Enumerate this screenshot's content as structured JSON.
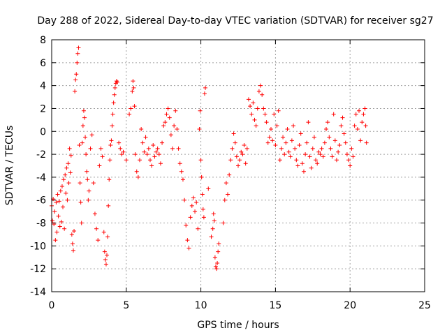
{
  "chart_data": {
    "type": "scatter",
    "title": "Day 288 of 2022, Sidereal Day-to-day VTEC variation (SDTVAR) for receiver sg27",
    "xlabel": "GPS time / hours",
    "ylabel": "SDTVAR / TECUs",
    "xlim": [
      0,
      25
    ],
    "ylim": [
      -14,
      8
    ],
    "xticks": [
      0,
      5,
      10,
      15,
      20,
      25
    ],
    "yticks": [
      -14,
      -12,
      -10,
      -8,
      -6,
      -4,
      -2,
      0,
      2,
      4,
      6,
      8
    ],
    "grid": true,
    "marker": "plus",
    "color": "#ff0000",
    "series": [
      {
        "name": "sg27",
        "points": [
          [
            0.0,
            -6.5
          ],
          [
            0.05,
            -7.8
          ],
          [
            0.1,
            -5.9
          ],
          [
            0.15,
            -8.1
          ],
          [
            0.2,
            -7.0
          ],
          [
            0.25,
            -9.5
          ],
          [
            0.3,
            -6.2
          ],
          [
            0.35,
            -8.8
          ],
          [
            0.4,
            -5.5
          ],
          [
            0.45,
            -7.4
          ],
          [
            0.5,
            -6.1
          ],
          [
            0.55,
            -8.3
          ],
          [
            0.6,
            -5.2
          ],
          [
            0.65,
            -7.9
          ],
          [
            0.7,
            -4.8
          ],
          [
            0.75,
            -6.6
          ],
          [
            0.8,
            -4.2
          ],
          [
            0.85,
            -8.5
          ],
          [
            0.9,
            -3.8
          ],
          [
            0.95,
            -5.4
          ],
          [
            1.0,
            -3.2
          ],
          [
            1.05,
            -6.0
          ],
          [
            1.1,
            -2.8
          ],
          [
            1.15,
            -4.5
          ],
          [
            1.2,
            -1.5
          ],
          [
            1.25,
            -3.6
          ],
          [
            1.3,
            -2.1
          ],
          [
            1.35,
            -9.0
          ],
          [
            1.4,
            -9.8
          ],
          [
            1.45,
            -10.4
          ],
          [
            1.5,
            -8.7
          ],
          [
            1.55,
            3.5
          ],
          [
            1.6,
            4.5
          ],
          [
            1.65,
            5.0
          ],
          [
            1.7,
            6.0
          ],
          [
            1.75,
            6.8
          ],
          [
            1.8,
            7.3
          ],
          [
            1.85,
            -1.2
          ],
          [
            1.9,
            -4.5
          ],
          [
            1.95,
            -6.2
          ],
          [
            2.0,
            -8.0
          ],
          [
            2.05,
            -1.0
          ],
          [
            2.1,
            0.5
          ],
          [
            2.15,
            1.8
          ],
          [
            2.2,
            1.2
          ],
          [
            2.25,
            -0.5
          ],
          [
            2.3,
            -2.0
          ],
          [
            2.35,
            -3.5
          ],
          [
            2.4,
            -4.2
          ],
          [
            2.45,
            -6.0
          ],
          [
            2.5,
            -5.2
          ],
          [
            2.6,
            -1.5
          ],
          [
            2.7,
            -0.3
          ],
          [
            2.8,
            -4.5
          ],
          [
            2.9,
            -7.2
          ],
          [
            3.0,
            -8.5
          ],
          [
            3.1,
            -9.5
          ],
          [
            3.2,
            -3.0
          ],
          [
            3.3,
            -1.5
          ],
          [
            3.4,
            -2.2
          ],
          [
            3.5,
            -8.8
          ],
          [
            3.55,
            -10.5
          ],
          [
            3.6,
            -11.2
          ],
          [
            3.65,
            -11.6
          ],
          [
            3.7,
            -10.8
          ],
          [
            3.75,
            -9.2
          ],
          [
            3.8,
            -6.5
          ],
          [
            3.85,
            -4.2
          ],
          [
            3.9,
            -2.5
          ],
          [
            3.95,
            -1.2
          ],
          [
            4.0,
            -0.8
          ],
          [
            4.05,
            0.5
          ],
          [
            4.1,
            1.5
          ],
          [
            4.15,
            2.5
          ],
          [
            4.2,
            3.2
          ],
          [
            4.25,
            3.8
          ],
          [
            4.3,
            4.2
          ],
          [
            4.35,
            4.4
          ],
          [
            4.4,
            4.3
          ],
          [
            4.5,
            -1.0
          ],
          [
            4.6,
            -1.5
          ],
          [
            4.7,
            -2.0
          ],
          [
            4.8,
            -1.8
          ],
          [
            5.0,
            -2.5
          ],
          [
            5.2,
            1.5
          ],
          [
            5.3,
            2.0
          ],
          [
            5.4,
            3.5
          ],
          [
            5.45,
            4.4
          ],
          [
            5.5,
            3.8
          ],
          [
            5.55,
            2.2
          ],
          [
            5.6,
            -2.0
          ],
          [
            5.7,
            -3.5
          ],
          [
            5.8,
            -4.0
          ],
          [
            5.9,
            -2.5
          ],
          [
            6.0,
            0.2
          ],
          [
            6.1,
            -1.0
          ],
          [
            6.2,
            -1.8
          ],
          [
            6.3,
            -0.5
          ],
          [
            6.4,
            -2.0
          ],
          [
            6.5,
            -1.5
          ],
          [
            6.6,
            -2.5
          ],
          [
            6.7,
            -3.0
          ],
          [
            6.8,
            -1.2
          ],
          [
            6.9,
            -2.2
          ],
          [
            7.0,
            -1.8
          ],
          [
            7.1,
            -1.5
          ],
          [
            7.2,
            -2.0
          ],
          [
            7.3,
            -2.8
          ],
          [
            7.4,
            -1.0
          ],
          [
            7.5,
            0.5
          ],
          [
            7.6,
            0.8
          ],
          [
            7.7,
            1.5
          ],
          [
            7.8,
            2.0
          ],
          [
            7.9,
            1.2
          ],
          [
            8.0,
            -0.3
          ],
          [
            8.1,
            -1.5
          ],
          [
            8.2,
            0.5
          ],
          [
            8.3,
            1.8
          ],
          [
            8.4,
            0.2
          ],
          [
            8.5,
            -1.5
          ],
          [
            8.6,
            -2.8
          ],
          [
            8.7,
            -3.5
          ],
          [
            8.8,
            -4.2
          ],
          [
            8.9,
            -6.0
          ],
          [
            9.0,
            -8.2
          ],
          [
            9.1,
            -9.5
          ],
          [
            9.2,
            -10.2
          ],
          [
            9.3,
            -7.5
          ],
          [
            9.4,
            -6.5
          ],
          [
            9.5,
            -5.8
          ],
          [
            9.6,
            -7.0
          ],
          [
            9.7,
            -6.2
          ],
          [
            9.8,
            -8.5
          ],
          [
            9.9,
            0.2
          ],
          [
            9.95,
            1.8
          ],
          [
            10.0,
            -2.5
          ],
          [
            10.05,
            -4.0
          ],
          [
            10.1,
            -5.5
          ],
          [
            10.15,
            -6.8
          ],
          [
            10.2,
            -7.5
          ],
          [
            10.25,
            3.3
          ],
          [
            10.3,
            3.8
          ],
          [
            10.5,
            -5.0
          ],
          [
            10.7,
            -9.2
          ],
          [
            10.8,
            -8.5
          ],
          [
            10.85,
            -7.2
          ],
          [
            10.9,
            -7.8
          ],
          [
            10.95,
            -11.0
          ],
          [
            11.0,
            -11.8
          ],
          [
            11.05,
            -12.0
          ],
          [
            11.1,
            -11.5
          ],
          [
            11.15,
            -10.5
          ],
          [
            11.2,
            -9.8
          ],
          [
            11.5,
            -8.0
          ],
          [
            11.6,
            -6.0
          ],
          [
            11.7,
            -4.5
          ],
          [
            11.8,
            -5.5
          ],
          [
            11.9,
            -3.8
          ],
          [
            12.0,
            -2.5
          ],
          [
            12.1,
            -1.5
          ],
          [
            12.2,
            -0.2
          ],
          [
            12.3,
            -1.0
          ],
          [
            12.4,
            -2.2
          ],
          [
            12.5,
            -3.0
          ],
          [
            12.6,
            -2.5
          ],
          [
            12.7,
            -1.8
          ],
          [
            12.8,
            -2.0
          ],
          [
            12.9,
            -1.2
          ],
          [
            13.0,
            -2.8
          ],
          [
            13.1,
            -1.5
          ],
          [
            13.2,
            2.8
          ],
          [
            13.3,
            2.2
          ],
          [
            13.4,
            1.5
          ],
          [
            13.5,
            2.5
          ],
          [
            13.6,
            1.0
          ],
          [
            13.7,
            0.5
          ],
          [
            13.8,
            2.0
          ],
          [
            13.9,
            3.5
          ],
          [
            14.0,
            4.0
          ],
          [
            14.1,
            3.2
          ],
          [
            14.2,
            2.0
          ],
          [
            14.3,
            1.5
          ],
          [
            14.4,
            0.8
          ],
          [
            14.5,
            -1.0
          ],
          [
            14.6,
            -0.5
          ],
          [
            14.7,
            0.2
          ],
          [
            14.8,
            -0.8
          ],
          [
            14.9,
            1.5
          ],
          [
            15.0,
            -1.2
          ],
          [
            15.1,
            0.5
          ],
          [
            15.2,
            1.8
          ],
          [
            15.3,
            -2.5
          ],
          [
            15.4,
            -1.5
          ],
          [
            15.5,
            -0.5
          ],
          [
            15.6,
            -2.0
          ],
          [
            15.7,
            -1.0
          ],
          [
            15.8,
            0.2
          ],
          [
            15.9,
            -1.8
          ],
          [
            16.0,
            -2.2
          ],
          [
            16.1,
            -0.8
          ],
          [
            16.2,
            0.5
          ],
          [
            16.3,
            -1.5
          ],
          [
            16.4,
            -2.5
          ],
          [
            16.5,
            -3.0
          ],
          [
            16.6,
            -1.2
          ],
          [
            16.7,
            -0.2
          ],
          [
            16.8,
            -2.8
          ],
          [
            16.9,
            -3.5
          ],
          [
            17.0,
            -2.0
          ],
          [
            17.1,
            -1.0
          ],
          [
            17.2,
            0.8
          ],
          [
            17.3,
            -2.2
          ],
          [
            17.4,
            -3.2
          ],
          [
            17.5,
            -1.5
          ],
          [
            17.6,
            -0.5
          ],
          [
            17.7,
            -2.5
          ],
          [
            17.8,
            -2.8
          ],
          [
            17.9,
            -1.8
          ],
          [
            18.0,
            -2.0
          ],
          [
            18.1,
            -1.5
          ],
          [
            18.2,
            -2.2
          ],
          [
            18.3,
            -1.0
          ],
          [
            18.4,
            0.2
          ],
          [
            18.5,
            0.8
          ],
          [
            18.6,
            -0.5
          ],
          [
            18.7,
            -1.5
          ],
          [
            18.8,
            -2.2
          ],
          [
            18.9,
            1.5
          ],
          [
            19.0,
            -0.8
          ],
          [
            19.1,
            -2.5
          ],
          [
            19.2,
            -1.8
          ],
          [
            19.3,
            -1.2
          ],
          [
            19.4,
            0.5
          ],
          [
            19.5,
            1.2
          ],
          [
            19.6,
            -0.2
          ],
          [
            19.7,
            -1.0
          ],
          [
            19.8,
            -2.0
          ],
          [
            19.9,
            -2.5
          ],
          [
            20.0,
            -3.0
          ],
          [
            20.1,
            -1.5
          ],
          [
            20.2,
            -2.2
          ],
          [
            20.3,
            0.5
          ],
          [
            20.4,
            1.5
          ],
          [
            20.5,
            0.2
          ],
          [
            20.6,
            1.8
          ],
          [
            20.7,
            -0.8
          ],
          [
            20.8,
            0.8
          ],
          [
            20.9,
            1.5
          ],
          [
            21.0,
            2.0
          ],
          [
            21.05,
            0.5
          ],
          [
            21.1,
            -1.0
          ]
        ]
      }
    ]
  }
}
